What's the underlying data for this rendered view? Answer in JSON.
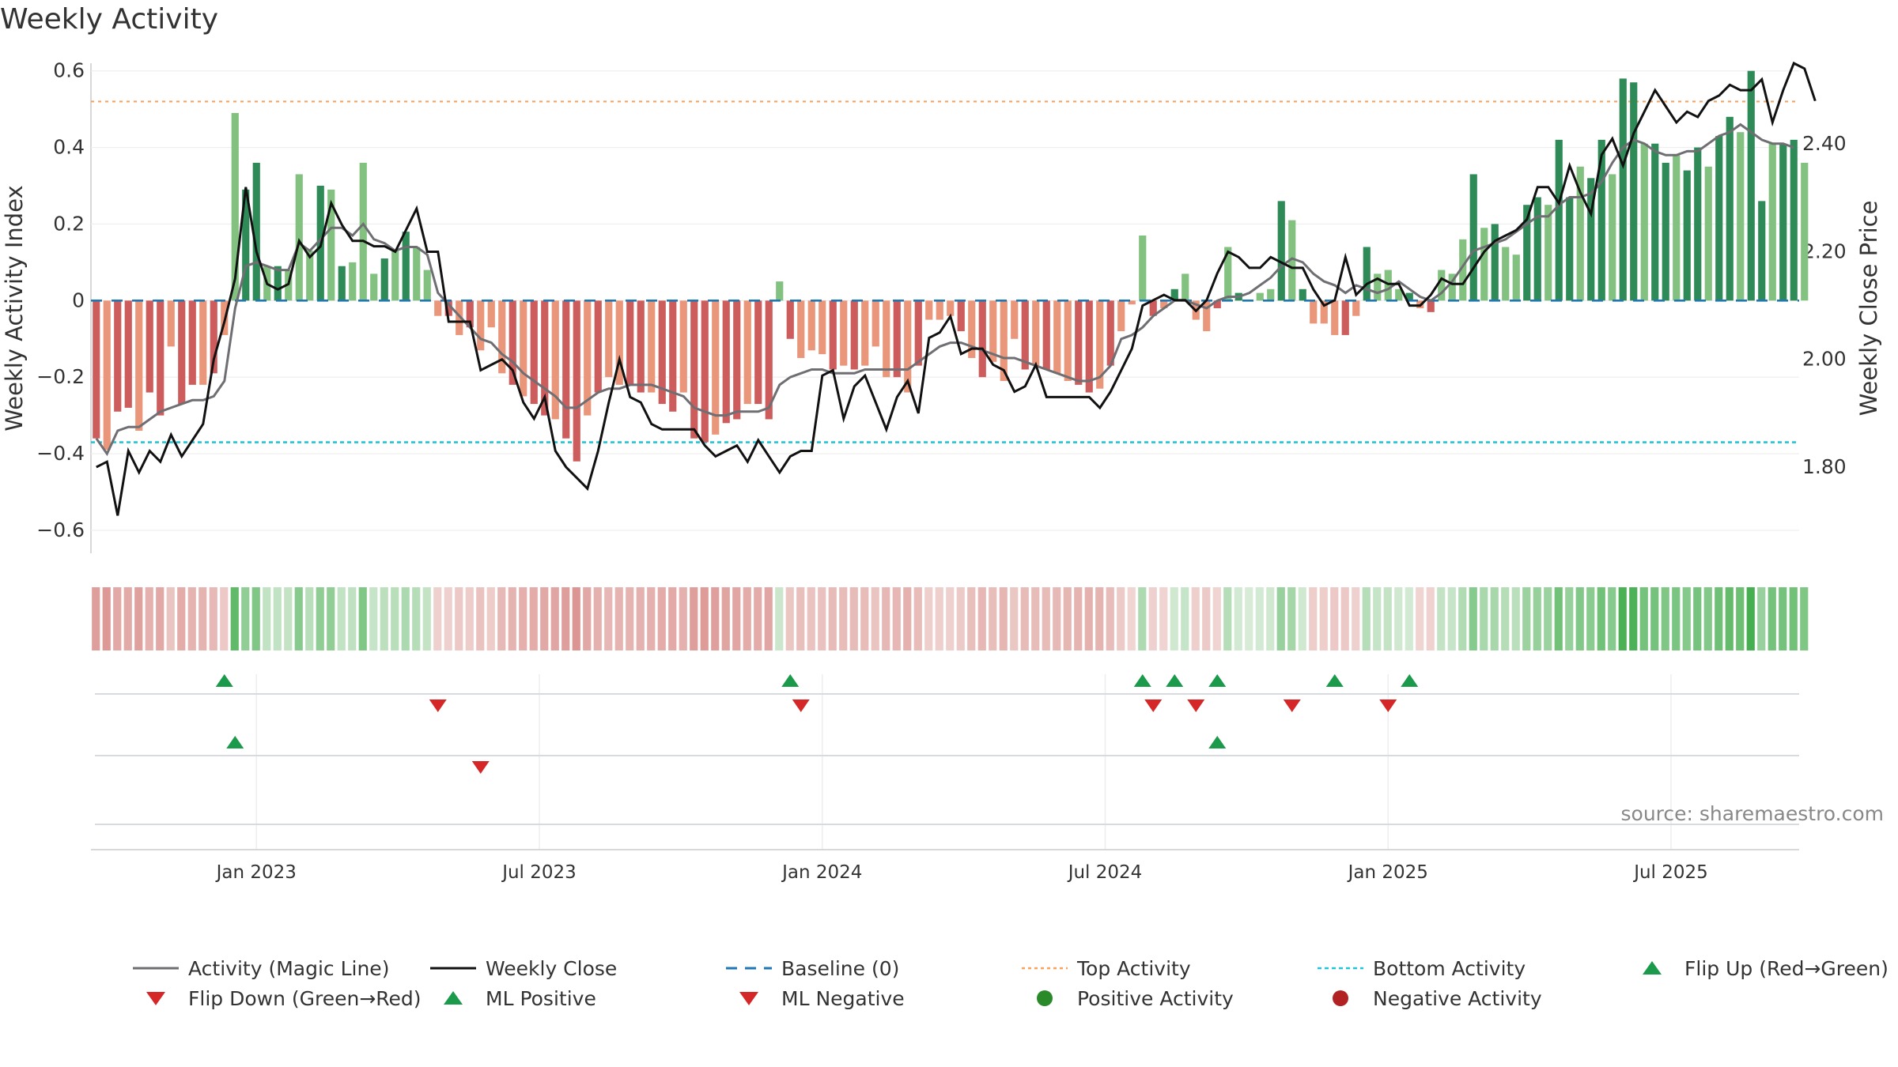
{
  "title": "Weekly Activity",
  "source": "source: sharemaestro.com",
  "colors": {
    "pos_dark": "#2e8b57",
    "pos_light": "#82c17f",
    "neg_dark": "#cd5c5c",
    "neg_light": "#e9967a",
    "magic": "#6e6e73",
    "close": "#111111",
    "baseline": "#1f77b4",
    "top": "#f4a460",
    "bottom": "#22c5d8",
    "up": "#1a9a4a",
    "down": "#d62728",
    "pos_marker": "#2a8a2a",
    "neg_marker": "#b22222"
  },
  "chart_data": {
    "type": "bar",
    "title": "Weekly Activity",
    "ylabel": "Weekly Activity Index",
    "y2label": "Weekly Close Price",
    "ylim": [
      -0.66,
      0.62
    ],
    "y2lim": [
      1.64,
      2.55
    ],
    "yticks": [
      0.6,
      0.4,
      0.2,
      0,
      -0.2,
      -0.4,
      -0.6
    ],
    "ytick_labels": [
      "0.6",
      "0.4",
      "0.2",
      "0",
      "−0.2",
      "−0.4",
      "−0.6"
    ],
    "y2ticks": [
      2.4,
      2.2,
      2.0,
      1.8
    ],
    "y2tick_labels": [
      "2.40",
      "2.20",
      "2.00",
      "1.80"
    ],
    "xlim": [
      0,
      160
    ],
    "xticks": [
      {
        "label": "Jan 2023",
        "x": 15.5
      },
      {
        "label": "Jul 2023",
        "x": 42
      },
      {
        "label": "Jan 2024",
        "x": 68.5
      },
      {
        "label": "Jul 2024",
        "x": 95
      },
      {
        "label": "Jan 2025",
        "x": 121.5
      },
      {
        "label": "Jul 2025",
        "x": 148
      }
    ],
    "top_activity": 0.52,
    "bottom_activity": -0.37,
    "activity": [
      -0.36,
      -0.39,
      -0.29,
      -0.28,
      -0.34,
      -0.24,
      -0.3,
      -0.12,
      -0.27,
      -0.22,
      -0.22,
      -0.19,
      -0.09,
      0.49,
      0.29,
      0.36,
      0.09,
      0.09,
      0.08,
      0.33,
      0.13,
      0.3,
      0.29,
      0.09,
      0.1,
      0.36,
      0.07,
      0.11,
      0.13,
      0.18,
      0.14,
      0.08,
      -0.04,
      -0.04,
      -0.09,
      -0.07,
      -0.13,
      -0.07,
      -0.19,
      -0.22,
      -0.25,
      -0.27,
      -0.3,
      -0.31,
      -0.36,
      -0.42,
      -0.3,
      -0.24,
      -0.2,
      -0.22,
      -0.22,
      -0.24,
      -0.24,
      -0.27,
      -0.29,
      -0.24,
      -0.36,
      -0.37,
      -0.35,
      -0.32,
      -0.31,
      -0.27,
      -0.27,
      -0.31,
      0.05,
      -0.1,
      -0.15,
      -0.13,
      -0.14,
      -0.18,
      -0.17,
      -0.18,
      -0.17,
      -0.12,
      -0.2,
      -0.2,
      -0.24,
      -0.17,
      -0.05,
      -0.05,
      -0.04,
      -0.08,
      -0.15,
      -0.2,
      -0.16,
      -0.21,
      -0.1,
      -0.18,
      -0.17,
      -0.18,
      -0.19,
      -0.21,
      -0.22,
      -0.24,
      -0.23,
      -0.17,
      -0.08,
      -0.01,
      0.17,
      -0.04,
      -0.02,
      0.03,
      0.07,
      -0.05,
      -0.08,
      -0.02,
      0.14,
      0.02,
      0.0,
      0.02,
      0.03,
      0.26,
      0.21,
      0.03,
      -0.06,
      -0.06,
      -0.09,
      -0.09,
      -0.04,
      0.14,
      0.07,
      0.08,
      0.03,
      0.02,
      -0.02,
      -0.03,
      0.08,
      0.07,
      0.16,
      0.33,
      0.19,
      0.2,
      0.14,
      0.12,
      0.25,
      0.27,
      0.25,
      0.42,
      0.27,
      0.35,
      0.32,
      0.42,
      0.33,
      0.58,
      0.57,
      0.41,
      0.41,
      0.36,
      0.38,
      0.34,
      0.4,
      0.35,
      0.43,
      0.48,
      0.44,
      0.6,
      0.26,
      0.41,
      0.41,
      0.42,
      0.36
    ],
    "magic_line": [
      -0.36,
      -0.4,
      -0.34,
      -0.33,
      -0.33,
      -0.31,
      -0.29,
      -0.28,
      -0.27,
      -0.26,
      -0.26,
      -0.25,
      -0.21,
      -0.02,
      0.09,
      0.1,
      0.09,
      0.08,
      0.08,
      0.15,
      0.13,
      0.16,
      0.19,
      0.19,
      0.17,
      0.2,
      0.16,
      0.15,
      0.13,
      0.14,
      0.14,
      0.12,
      0.02,
      -0.01,
      -0.04,
      -0.07,
      -0.1,
      -0.11,
      -0.14,
      -0.16,
      -0.19,
      -0.21,
      -0.23,
      -0.25,
      -0.28,
      -0.28,
      -0.26,
      -0.24,
      -0.23,
      -0.23,
      -0.22,
      -0.22,
      -0.22,
      -0.23,
      -0.24,
      -0.25,
      -0.28,
      -0.29,
      -0.3,
      -0.3,
      -0.29,
      -0.29,
      -0.29,
      -0.28,
      -0.22,
      -0.2,
      -0.19,
      -0.18,
      -0.18,
      -0.19,
      -0.19,
      -0.19,
      -0.18,
      -0.18,
      -0.18,
      -0.18,
      -0.18,
      -0.16,
      -0.14,
      -0.12,
      -0.11,
      -0.11,
      -0.12,
      -0.13,
      -0.14,
      -0.15,
      -0.15,
      -0.16,
      -0.17,
      -0.18,
      -0.19,
      -0.2,
      -0.21,
      -0.21,
      -0.2,
      -0.17,
      -0.1,
      -0.09,
      -0.07,
      -0.04,
      -0.02,
      0.0,
      0.0,
      -0.01,
      -0.02,
      0.0,
      0.01,
      0.01,
      0.02,
      0.04,
      0.06,
      0.09,
      0.11,
      0.1,
      0.07,
      0.05,
      0.04,
      0.02,
      0.04,
      0.03,
      0.02,
      0.03,
      0.05,
      0.03,
      0.01,
      0.0,
      0.02,
      0.05,
      0.09,
      0.13,
      0.14,
      0.15,
      0.16,
      0.18,
      0.2,
      0.22,
      0.22,
      0.25,
      0.27,
      0.27,
      0.28,
      0.31,
      0.36,
      0.4,
      0.42,
      0.41,
      0.39,
      0.38,
      0.38,
      0.39,
      0.39,
      0.41,
      0.43,
      0.44,
      0.46,
      0.44,
      0.42,
      0.41,
      0.41,
      0.4
    ],
    "weekly_close": [
      1.8,
      1.81,
      1.71,
      1.83,
      1.79,
      1.83,
      1.81,
      1.86,
      1.82,
      1.85,
      1.88,
      2.0,
      2.07,
      2.15,
      2.32,
      2.2,
      2.14,
      2.13,
      2.14,
      2.22,
      2.19,
      2.21,
      2.29,
      2.25,
      2.22,
      2.22,
      2.21,
      2.21,
      2.2,
      2.24,
      2.28,
      2.2,
      2.2,
      2.07,
      2.07,
      2.07,
      1.98,
      1.99,
      2.0,
      1.98,
      1.92,
      1.89,
      1.93,
      1.83,
      1.8,
      1.78,
      1.76,
      1.83,
      1.92,
      2.0,
      1.93,
      1.92,
      1.88,
      1.87,
      1.87,
      1.87,
      1.87,
      1.84,
      1.82,
      1.83,
      1.84,
      1.81,
      1.85,
      1.82,
      1.79,
      1.82,
      1.83,
      1.83,
      1.97,
      1.98,
      1.89,
      1.95,
      1.97,
      1.92,
      1.87,
      1.93,
      1.96,
      1.9,
      2.04,
      2.05,
      2.08,
      2.01,
      2.02,
      2.02,
      1.99,
      1.98,
      1.94,
      1.95,
      1.99,
      1.93,
      1.93,
      1.93,
      1.93,
      1.93,
      1.91,
      1.94,
      1.98,
      2.02,
      2.1,
      2.11,
      2.12,
      2.11,
      2.11,
      2.09,
      2.11,
      2.16,
      2.2,
      2.19,
      2.17,
      2.17,
      2.19,
      2.18,
      2.17,
      2.17,
      2.13,
      2.1,
      2.11,
      2.19,
      2.12,
      2.14,
      2.15,
      2.14,
      2.14,
      2.1,
      2.1,
      2.12,
      2.15,
      2.14,
      2.14,
      2.17,
      2.2,
      2.22,
      2.23,
      2.24,
      2.26,
      2.32,
      2.32,
      2.29,
      2.36,
      2.31,
      2.27,
      2.38,
      2.41,
      2.36,
      2.42,
      2.46,
      2.5,
      2.47,
      2.44,
      2.46,
      2.45,
      2.48,
      2.49,
      2.51,
      2.5,
      2.5,
      2.52,
      2.44,
      2.5,
      2.55,
      2.54,
      2.48
    ],
    "flip_up": [
      12,
      65,
      98,
      101,
      105,
      116,
      123
    ],
    "flip_down": [
      32,
      66,
      99,
      103,
      112,
      121
    ],
    "ml_positive": [
      13,
      105
    ],
    "ml_negative": [
      36
    ],
    "strip_note": "heat strip colored by activity sign and magnitude",
    "legend": [
      "Activity (Magic Line)",
      "Weekly Close",
      "Baseline (0)",
      "Top Activity",
      "Bottom Activity",
      "Flip Up (Red→Green)",
      "Flip Down (Green→Red)",
      "ML Positive",
      "ML Negative",
      "Positive Activity",
      "Negative Activity"
    ]
  },
  "legend_items": [
    {
      "label": "Activity (Magic Line)",
      "kind": "line-magic"
    },
    {
      "label": "Weekly Close",
      "kind": "line-close"
    },
    {
      "label": "Baseline (0)",
      "kind": "line-baseline"
    },
    {
      "label": "Top Activity",
      "kind": "line-top"
    },
    {
      "label": "Bottom Activity",
      "kind": "line-bottom"
    },
    {
      "label": "Flip Up (Red→Green)",
      "kind": "tri-up"
    },
    {
      "label": "Flip Down (Green→Red)",
      "kind": "tri-down"
    },
    {
      "label": "ML Positive",
      "kind": "tri-up"
    },
    {
      "label": "ML Negative",
      "kind": "tri-down"
    },
    {
      "label": "Positive Activity",
      "kind": "dot-pos"
    },
    {
      "label": "Negative Activity",
      "kind": "dot-neg"
    }
  ]
}
